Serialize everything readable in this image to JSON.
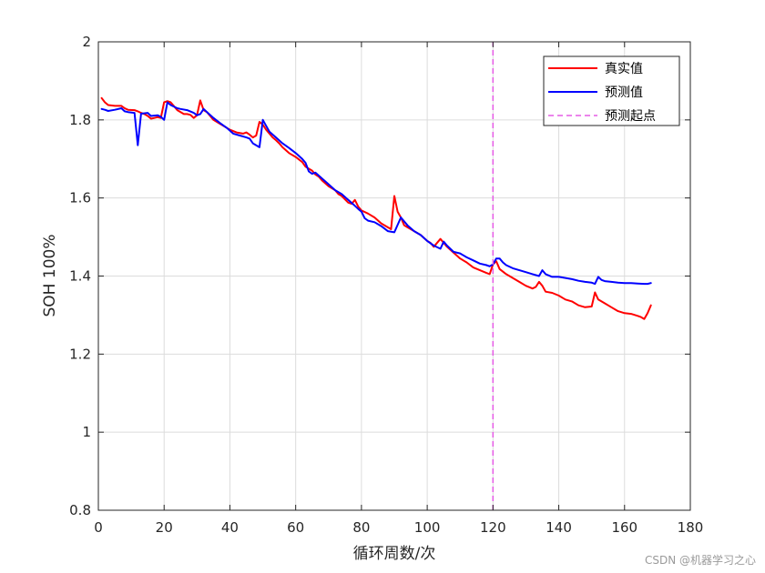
{
  "chart_data": {
    "type": "line",
    "xlabel": "循环周数/次",
    "ylabel": "SOH 100%",
    "xlim": [
      0,
      180
    ],
    "ylim": [
      0.8,
      2.0
    ],
    "xticks": [
      0,
      20,
      40,
      60,
      80,
      100,
      120,
      140,
      160,
      180
    ],
    "yticks": [
      0.8,
      1,
      1.2,
      1.4,
      1.6,
      1.8,
      2
    ],
    "xtick_labels": [
      "0",
      "20",
      "40",
      "60",
      "80",
      "100",
      "120",
      "140",
      "160",
      "180"
    ],
    "ytick_labels": [
      "0.8",
      "1",
      "1.2",
      "1.4",
      "1.6",
      "1.8",
      "2"
    ],
    "grid": true,
    "legend_position": "top-right",
    "series": [
      {
        "name": "真实值",
        "color": "#ff0000",
        "style": "solid",
        "points": [
          [
            1,
            1.856
          ],
          [
            2,
            1.845
          ],
          [
            3,
            1.838
          ],
          [
            5,
            1.836
          ],
          [
            7,
            1.836
          ],
          [
            8,
            1.83
          ],
          [
            9,
            1.826
          ],
          [
            11,
            1.825
          ],
          [
            12,
            1.822
          ],
          [
            13,
            1.818
          ],
          [
            14,
            1.815
          ],
          [
            15,
            1.81
          ],
          [
            16,
            1.803
          ],
          [
            17,
            1.805
          ],
          [
            18,
            1.807
          ],
          [
            19,
            1.805
          ],
          [
            20,
            1.845
          ],
          [
            21,
            1.848
          ],
          [
            22,
            1.845
          ],
          [
            23,
            1.835
          ],
          [
            24,
            1.825
          ],
          [
            25,
            1.82
          ],
          [
            26,
            1.815
          ],
          [
            27,
            1.815
          ],
          [
            28,
            1.813
          ],
          [
            29,
            1.805
          ],
          [
            30,
            1.812
          ],
          [
            31,
            1.85
          ],
          [
            32,
            1.825
          ],
          [
            33,
            1.82
          ],
          [
            34,
            1.81
          ],
          [
            35,
            1.8
          ],
          [
            37,
            1.79
          ],
          [
            38,
            1.785
          ],
          [
            40,
            1.775
          ],
          [
            42,
            1.768
          ],
          [
            44,
            1.765
          ],
          [
            45,
            1.768
          ],
          [
            46,
            1.762
          ],
          [
            47,
            1.755
          ],
          [
            48,
            1.76
          ],
          [
            49,
            1.795
          ],
          [
            50,
            1.788
          ],
          [
            51,
            1.775
          ],
          [
            52,
            1.765
          ],
          [
            53,
            1.755
          ],
          [
            54,
            1.748
          ],
          [
            55,
            1.74
          ],
          [
            56,
            1.73
          ],
          [
            58,
            1.715
          ],
          [
            60,
            1.705
          ],
          [
            62,
            1.692
          ],
          [
            63,
            1.68
          ],
          [
            65,
            1.67
          ],
          [
            66,
            1.66
          ],
          [
            67,
            1.655
          ],
          [
            68,
            1.645
          ],
          [
            70,
            1.63
          ],
          [
            72,
            1.62
          ],
          [
            73,
            1.61
          ],
          [
            74,
            1.605
          ],
          [
            76,
            1.588
          ],
          [
            77,
            1.585
          ],
          [
            78,
            1.595
          ],
          [
            79,
            1.578
          ],
          [
            80,
            1.568
          ],
          [
            82,
            1.56
          ],
          [
            84,
            1.55
          ],
          [
            86,
            1.535
          ],
          [
            88,
            1.525
          ],
          [
            89,
            1.52
          ],
          [
            90,
            1.605
          ],
          [
            91,
            1.565
          ],
          [
            92,
            1.55
          ],
          [
            93,
            1.53
          ],
          [
            94,
            1.525
          ],
          [
            95,
            1.52
          ],
          [
            96,
            1.515
          ],
          [
            98,
            1.505
          ],
          [
            100,
            1.49
          ],
          [
            101,
            1.485
          ],
          [
            102,
            1.475
          ],
          [
            104,
            1.495
          ],
          [
            105,
            1.485
          ],
          [
            106,
            1.475
          ],
          [
            108,
            1.46
          ],
          [
            110,
            1.445
          ],
          [
            112,
            1.435
          ],
          [
            114,
            1.422
          ],
          [
            116,
            1.415
          ],
          [
            118,
            1.408
          ],
          [
            119,
            1.405
          ],
          [
            120,
            1.43
          ],
          [
            121,
            1.438
          ],
          [
            122,
            1.418
          ],
          [
            124,
            1.405
          ],
          [
            126,
            1.395
          ],
          [
            128,
            1.385
          ],
          [
            130,
            1.375
          ],
          [
            132,
            1.368
          ],
          [
            133,
            1.372
          ],
          [
            134,
            1.385
          ],
          [
            135,
            1.375
          ],
          [
            136,
            1.36
          ],
          [
            138,
            1.357
          ],
          [
            140,
            1.35
          ],
          [
            142,
            1.34
          ],
          [
            144,
            1.335
          ],
          [
            146,
            1.325
          ],
          [
            148,
            1.32
          ],
          [
            150,
            1.322
          ],
          [
            151,
            1.358
          ],
          [
            152,
            1.34
          ],
          [
            154,
            1.33
          ],
          [
            156,
            1.32
          ],
          [
            158,
            1.31
          ],
          [
            160,
            1.305
          ],
          [
            162,
            1.303
          ],
          [
            164,
            1.298
          ],
          [
            165,
            1.295
          ],
          [
            166,
            1.29
          ],
          [
            167,
            1.305
          ],
          [
            168,
            1.325
          ]
        ]
      },
      {
        "name": "预测值",
        "color": "#0000ff",
        "style": "solid",
        "points": [
          [
            1,
            1.828
          ],
          [
            2,
            1.826
          ],
          [
            3,
            1.823
          ],
          [
            5,
            1.826
          ],
          [
            7,
            1.83
          ],
          [
            8,
            1.822
          ],
          [
            9,
            1.82
          ],
          [
            11,
            1.818
          ],
          [
            12,
            1.735
          ],
          [
            13,
            1.816
          ],
          [
            15,
            1.818
          ],
          [
            16,
            1.81
          ],
          [
            18,
            1.812
          ],
          [
            19,
            1.808
          ],
          [
            20,
            1.8
          ],
          [
            21,
            1.845
          ],
          [
            22,
            1.838
          ],
          [
            24,
            1.83
          ],
          [
            25,
            1.828
          ],
          [
            27,
            1.825
          ],
          [
            29,
            1.818
          ],
          [
            30,
            1.812
          ],
          [
            31,
            1.815
          ],
          [
            32,
            1.828
          ],
          [
            33,
            1.82
          ],
          [
            35,
            1.805
          ],
          [
            37,
            1.792
          ],
          [
            39,
            1.78
          ],
          [
            41,
            1.765
          ],
          [
            43,
            1.76
          ],
          [
            45,
            1.755
          ],
          [
            46,
            1.752
          ],
          [
            47,
            1.74
          ],
          [
            48,
            1.735
          ],
          [
            49,
            1.73
          ],
          [
            50,
            1.8
          ],
          [
            51,
            1.785
          ],
          [
            52,
            1.77
          ],
          [
            54,
            1.755
          ],
          [
            56,
            1.74
          ],
          [
            58,
            1.728
          ],
          [
            60,
            1.715
          ],
          [
            62,
            1.7
          ],
          [
            63,
            1.69
          ],
          [
            64,
            1.668
          ],
          [
            65,
            1.662
          ],
          [
            66,
            1.665
          ],
          [
            68,
            1.65
          ],
          [
            70,
            1.635
          ],
          [
            72,
            1.62
          ],
          [
            74,
            1.61
          ],
          [
            76,
            1.595
          ],
          [
            78,
            1.58
          ],
          [
            79,
            1.572
          ],
          [
            80,
            1.565
          ],
          [
            81,
            1.548
          ],
          [
            82,
            1.542
          ],
          [
            84,
            1.538
          ],
          [
            86,
            1.528
          ],
          [
            88,
            1.515
          ],
          [
            90,
            1.512
          ],
          [
            92,
            1.55
          ],
          [
            94,
            1.53
          ],
          [
            96,
            1.515
          ],
          [
            98,
            1.505
          ],
          [
            100,
            1.49
          ],
          [
            102,
            1.478
          ],
          [
            104,
            1.47
          ],
          [
            105,
            1.488
          ],
          [
            106,
            1.478
          ],
          [
            108,
            1.462
          ],
          [
            110,
            1.458
          ],
          [
            112,
            1.448
          ],
          [
            114,
            1.44
          ],
          [
            116,
            1.432
          ],
          [
            118,
            1.428
          ],
          [
            119,
            1.425
          ],
          [
            120,
            1.43
          ],
          [
            121,
            1.445
          ],
          [
            122,
            1.445
          ],
          [
            123,
            1.435
          ],
          [
            124,
            1.428
          ],
          [
            126,
            1.42
          ],
          [
            128,
            1.415
          ],
          [
            130,
            1.41
          ],
          [
            132,
            1.405
          ],
          [
            134,
            1.4
          ],
          [
            135,
            1.415
          ],
          [
            136,
            1.405
          ],
          [
            138,
            1.398
          ],
          [
            140,
            1.398
          ],
          [
            142,
            1.395
          ],
          [
            144,
            1.392
          ],
          [
            146,
            1.388
          ],
          [
            148,
            1.385
          ],
          [
            150,
            1.383
          ],
          [
            151,
            1.38
          ],
          [
            152,
            1.398
          ],
          [
            153,
            1.39
          ],
          [
            154,
            1.387
          ],
          [
            156,
            1.385
          ],
          [
            158,
            1.383
          ],
          [
            160,
            1.382
          ],
          [
            162,
            1.382
          ],
          [
            164,
            1.381
          ],
          [
            166,
            1.38
          ],
          [
            167,
            1.38
          ],
          [
            168,
            1.382
          ]
        ]
      },
      {
        "name": "预测起点",
        "color": "#e65ce6",
        "style": "dashed",
        "points": [
          [
            120,
            0.8
          ],
          [
            120,
            2.0
          ]
        ]
      }
    ]
  },
  "watermark": "CSDN @机器学习之心"
}
